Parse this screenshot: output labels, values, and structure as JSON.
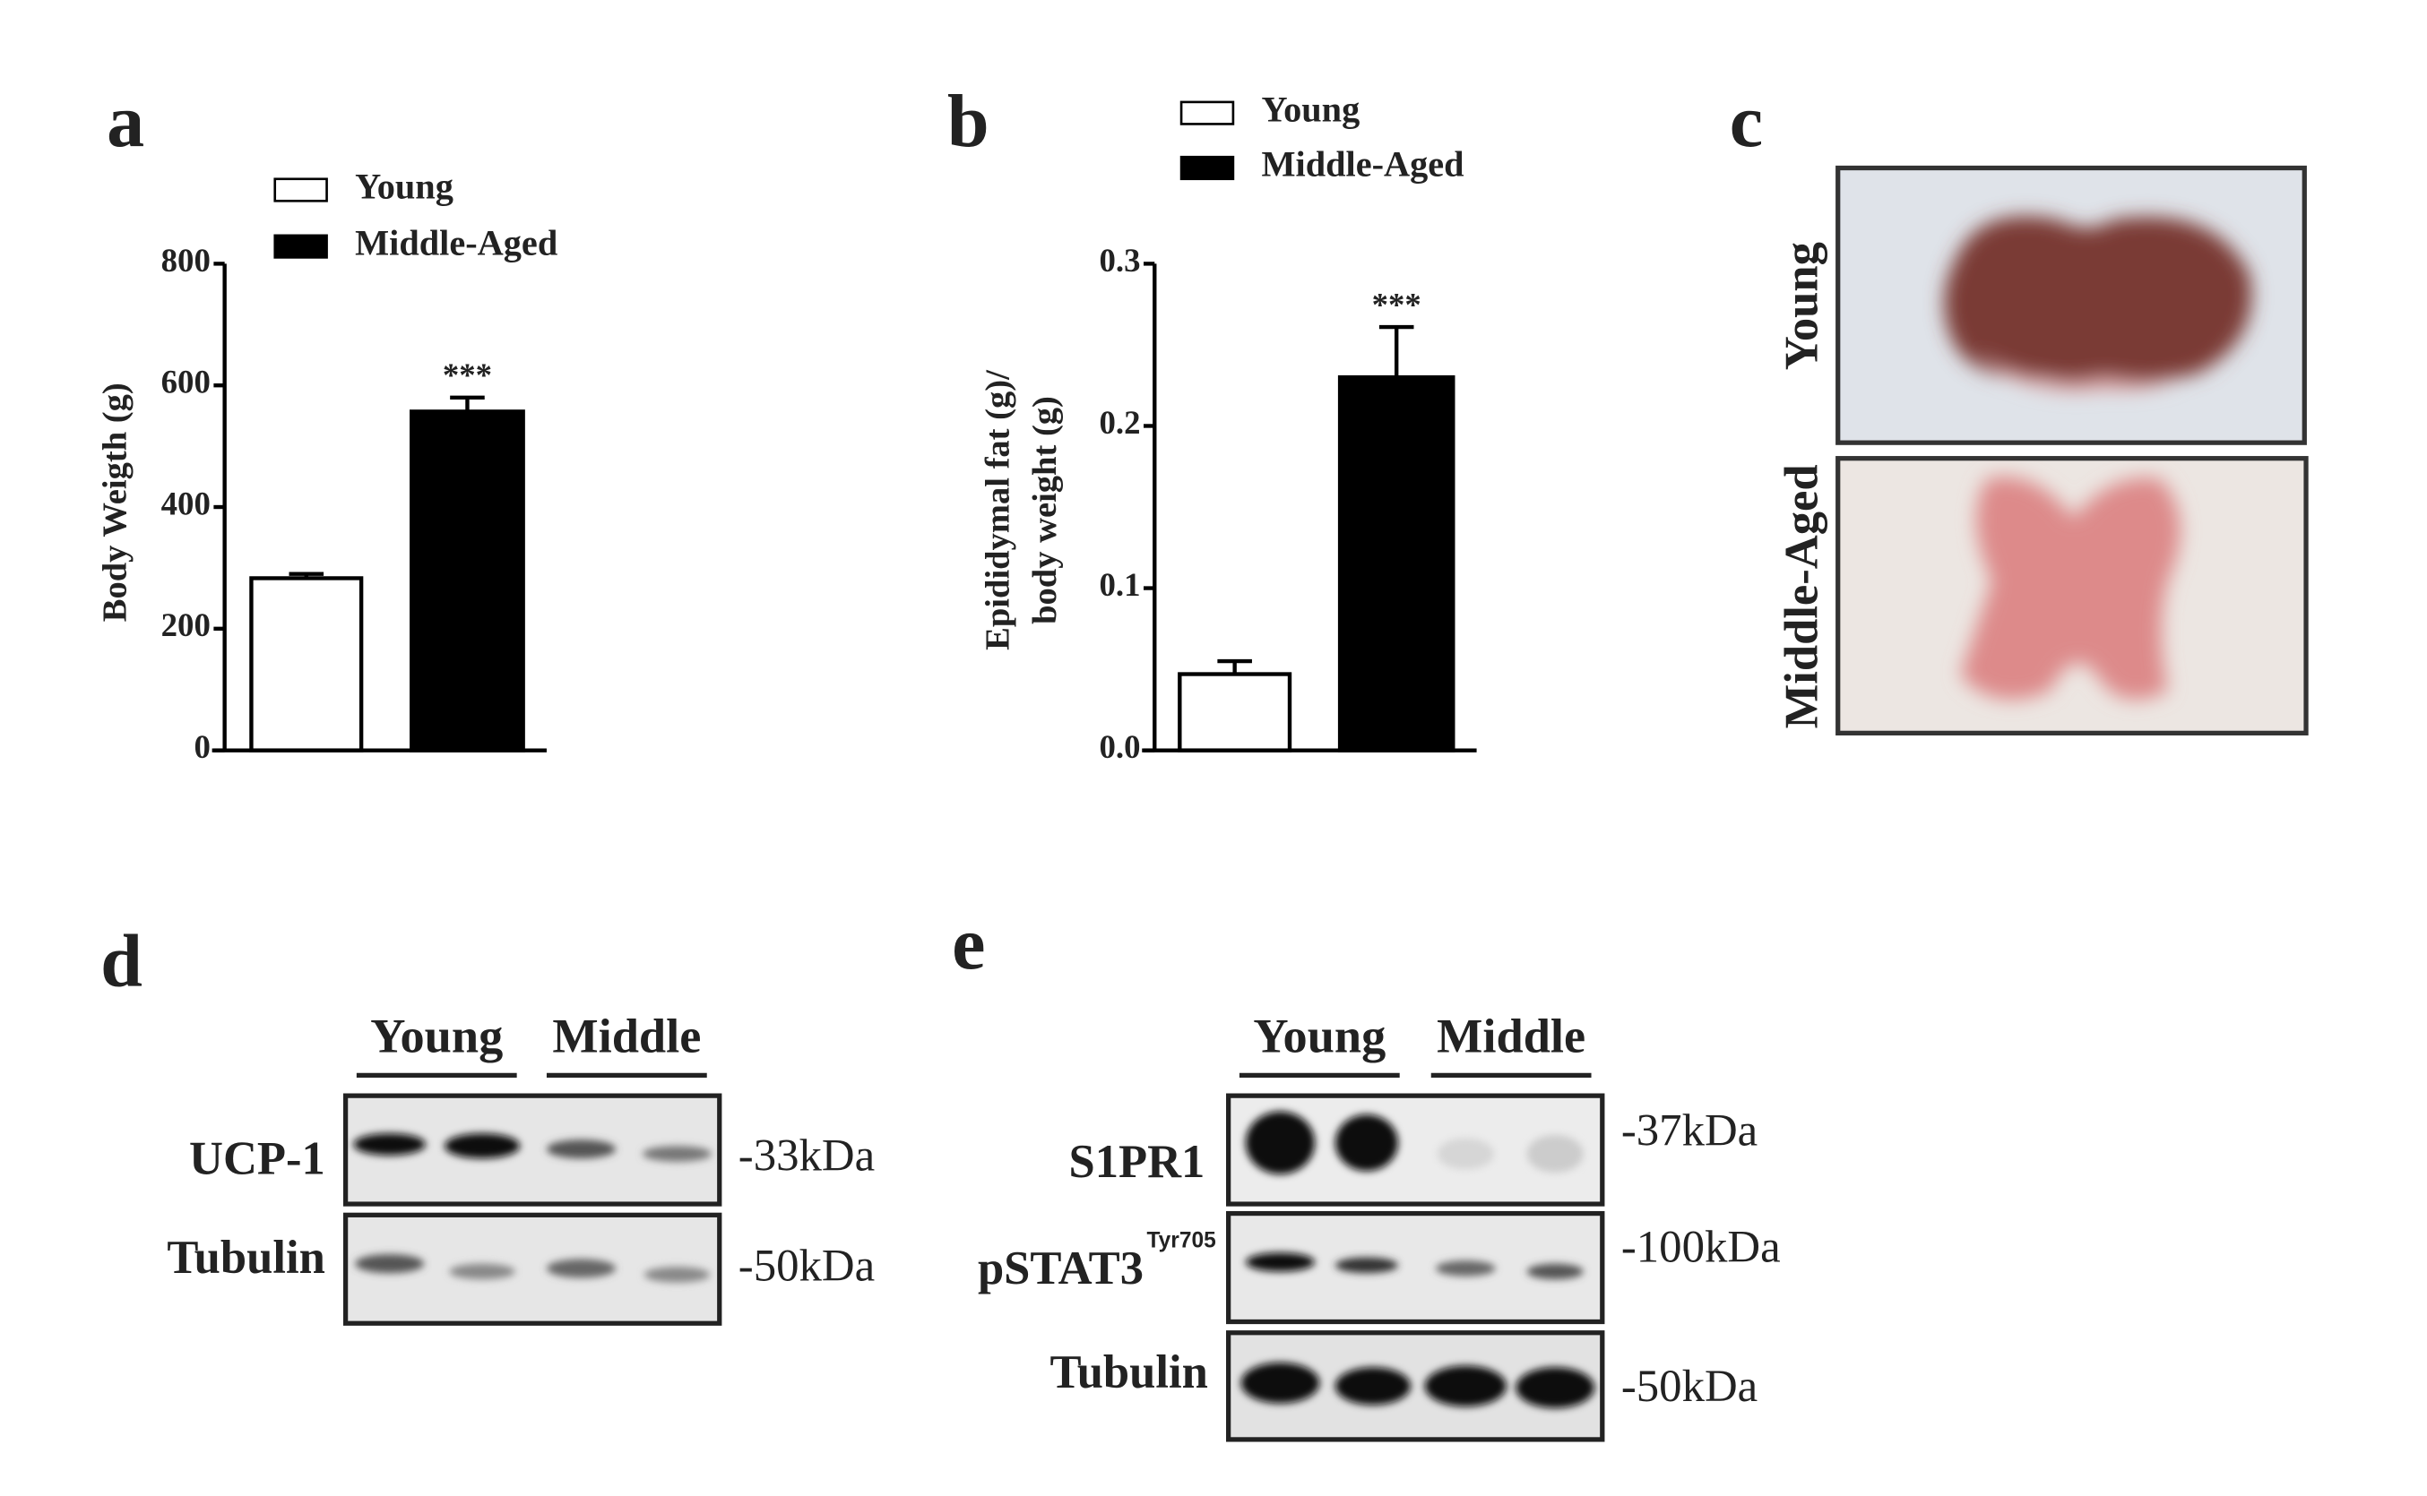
{
  "chart_data": [
    {
      "type": "bar",
      "panel_label": "a",
      "ylabel": [
        "Body Weigth (g)"
      ],
      "series": [
        {
          "name": "Young",
          "color": "#ffffff",
          "values": [
            283
          ],
          "errors": [
            7
          ]
        },
        {
          "name": "Middle-Aged",
          "color": "#000000",
          "values": [
            557
          ],
          "errors": [
            23
          ]
        }
      ],
      "annotation": "***",
      "ylim": [
        0,
        800
      ],
      "yticks": [
        0,
        200,
        400,
        600,
        800
      ]
    },
    {
      "type": "bar",
      "panel_label": "b",
      "ylabel": [
        "Epididymal fat (g)/",
        "body weight (g)"
      ],
      "series": [
        {
          "name": "Young",
          "color": "#ffffff",
          "values": [
            0.047
          ],
          "errors": [
            0.008
          ]
        },
        {
          "name": "Middle-Aged",
          "color": "#000000",
          "values": [
            0.23
          ],
          "errors": [
            0.031
          ]
        }
      ],
      "annotation": "***",
      "ylim": [
        0,
        0.3
      ],
      "yticks": [
        {
          "value": 0,
          "label": "0.0"
        },
        0.1,
        0.2,
        0.3
      ]
    }
  ],
  "panel_c": {
    "label": "c",
    "rows": [
      "Young",
      "Middle-Aged"
    ]
  },
  "panel_d": {
    "label": "d",
    "groups": [
      "Young",
      "Middle"
    ],
    "rows": [
      {
        "name": "UCP-1",
        "size": "-33kDa"
      },
      {
        "name": "Tubulin",
        "size": "-50kDa"
      }
    ]
  },
  "panel_e": {
    "label": "e",
    "groups": [
      "Young",
      "Middle"
    ],
    "rows": [
      {
        "name": "S1PR1",
        "size": "-37kDa"
      },
      {
        "name": "pSTAT3",
        "superscript": "Tyr705",
        "size": "-100kDa"
      },
      {
        "name": "Tubulin",
        "size": "-50kDa"
      }
    ]
  }
}
